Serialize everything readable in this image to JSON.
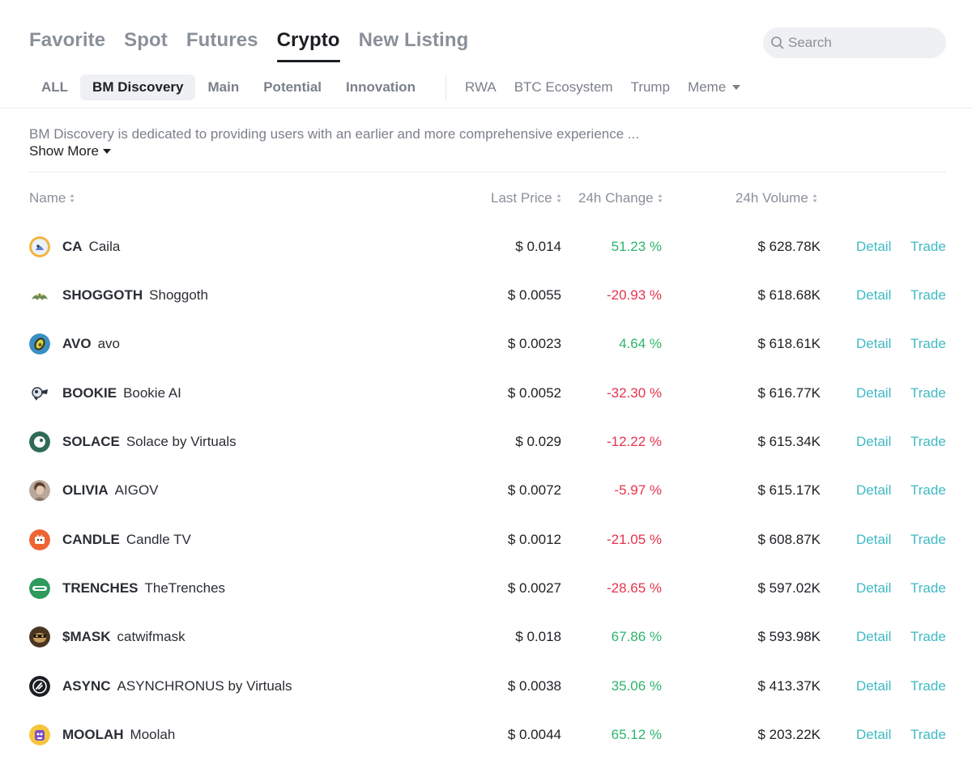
{
  "main_tabs": [
    "Favorite",
    "Spot",
    "Futures",
    "Crypto",
    "New Listing"
  ],
  "active_main_tab": "Crypto",
  "search": {
    "placeholder": "Search"
  },
  "sub_tabs": [
    "ALL",
    "BM Discovery",
    "Main",
    "Potential",
    "Innovation"
  ],
  "active_sub_tab": "BM Discovery",
  "sub_tabs_secondary": [
    "RWA",
    "BTC Ecosystem",
    "Trump",
    "Meme"
  ],
  "description": "BM Discovery is dedicated to providing users with an earlier and more comprehensive experience ...",
  "show_more": "Show More",
  "columns": {
    "name": "Name",
    "last_price": "Last Price",
    "change": "24h Change",
    "volume": "24h Volume"
  },
  "actions": {
    "detail": "Detail",
    "trade": "Trade"
  },
  "colors": {
    "up": "#2db56b",
    "down": "#e5334d",
    "link": "#3fbac4"
  },
  "rows": [
    {
      "symbol": "CA",
      "name": "Caila",
      "price": "$ 0.014",
      "change": "51.23 %",
      "direction": "up",
      "volume": "$ 628.78K",
      "icon": "caila-logo-icon"
    },
    {
      "symbol": "SHOGGOTH",
      "name": "Shoggoth",
      "price": "$ 0.0055",
      "change": "-20.93 %",
      "direction": "down",
      "volume": "$ 618.68K",
      "icon": "shoggoth-logo-icon"
    },
    {
      "symbol": "AVO",
      "name": "avo",
      "price": "$ 0.0023",
      "change": "4.64 %",
      "direction": "up",
      "volume": "$ 618.61K",
      "icon": "avo-logo-icon"
    },
    {
      "symbol": "BOOKIE",
      "name": "Bookie AI",
      "price": "$ 0.0052",
      "change": "-32.30 %",
      "direction": "down",
      "volume": "$ 616.77K",
      "icon": "bookie-logo-icon"
    },
    {
      "symbol": "SOLACE",
      "name": "Solace by Virtuals",
      "price": "$ 0.029",
      "change": "-12.22 %",
      "direction": "down",
      "volume": "$ 615.34K",
      "icon": "solace-logo-icon"
    },
    {
      "symbol": "OLIVIA",
      "name": "AIGOV",
      "price": "$ 0.0072",
      "change": "-5.97 %",
      "direction": "down",
      "volume": "$ 615.17K",
      "icon": "olivia-logo-icon"
    },
    {
      "symbol": "CANDLE",
      "name": "Candle TV",
      "price": "$ 0.0012",
      "change": "-21.05 %",
      "direction": "down",
      "volume": "$ 608.87K",
      "icon": "candle-logo-icon"
    },
    {
      "symbol": "TRENCHES",
      "name": "TheTrenches",
      "price": "$ 0.0027",
      "change": "-28.65 %",
      "direction": "down",
      "volume": "$ 597.02K",
      "icon": "trenches-logo-icon"
    },
    {
      "symbol": "$MASK",
      "name": "catwifmask",
      "price": "$ 0.018",
      "change": "67.86 %",
      "direction": "up",
      "volume": "$ 593.98K",
      "icon": "mask-logo-icon"
    },
    {
      "symbol": "ASYNC",
      "name": "ASYNCHRONUS by Virtuals",
      "price": "$ 0.0038",
      "change": "35.06 %",
      "direction": "up",
      "volume": "$ 413.37K",
      "icon": "async-logo-icon"
    },
    {
      "symbol": "MOOLAH",
      "name": "Moolah",
      "price": "$ 0.0044",
      "change": "65.12 %",
      "direction": "up",
      "volume": "$ 203.22K",
      "icon": "moolah-logo-icon"
    }
  ]
}
